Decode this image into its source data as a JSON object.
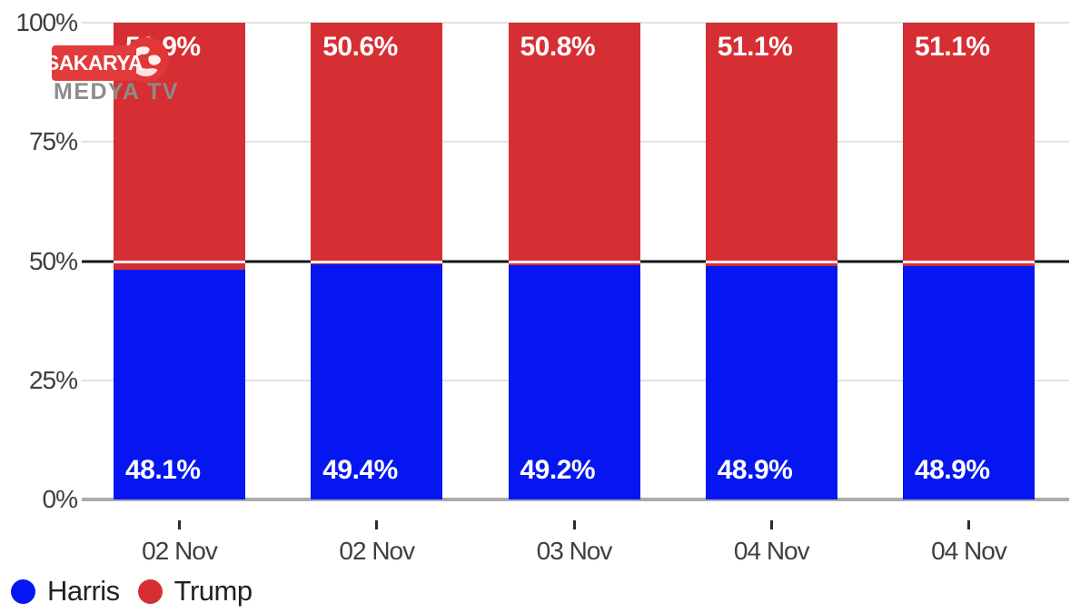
{
  "watermark": {
    "line1": "SAKARYA",
    "line2": "MEDYA TV"
  },
  "colors": {
    "harris_blue": "#0516f0",
    "trump_red": "#d62f33",
    "logo_red": "#e23b3b",
    "axis_text": "#3f3f3f",
    "reference_line": "#161616",
    "gridline": "#e2e2e2",
    "baseline": "#acacac"
  },
  "chart_data": {
    "type": "bar",
    "stacked": true,
    "categories": [
      "02 Nov",
      "02 Nov",
      "03 Nov",
      "04 Nov",
      "04 Nov"
    ],
    "series": [
      {
        "name": "Harris",
        "color": "#0516f0",
        "values": [
          48.1,
          49.4,
          49.2,
          48.9,
          48.9
        ]
      },
      {
        "name": "Trump",
        "color": "#d62f33",
        "values": [
          51.9,
          50.6,
          50.8,
          51.1,
          51.1
        ]
      }
    ],
    "data_label_format": "percent_one_decimal",
    "yticks": [
      {
        "pct": 0,
        "label": "0%"
      },
      {
        "pct": 25,
        "label": "25%"
      },
      {
        "pct": 50,
        "label": "50%"
      },
      {
        "pct": 75,
        "label": "75%"
      },
      {
        "pct": 100,
        "label": "100%"
      }
    ],
    "ylim": [
      0,
      100
    ],
    "reference_line_at": 50,
    "grid": true,
    "legend_position": "bottom-left",
    "legend": [
      {
        "label": "Harris",
        "color": "#0516f0"
      },
      {
        "label": "Trump",
        "color": "#d62f33"
      }
    ]
  }
}
